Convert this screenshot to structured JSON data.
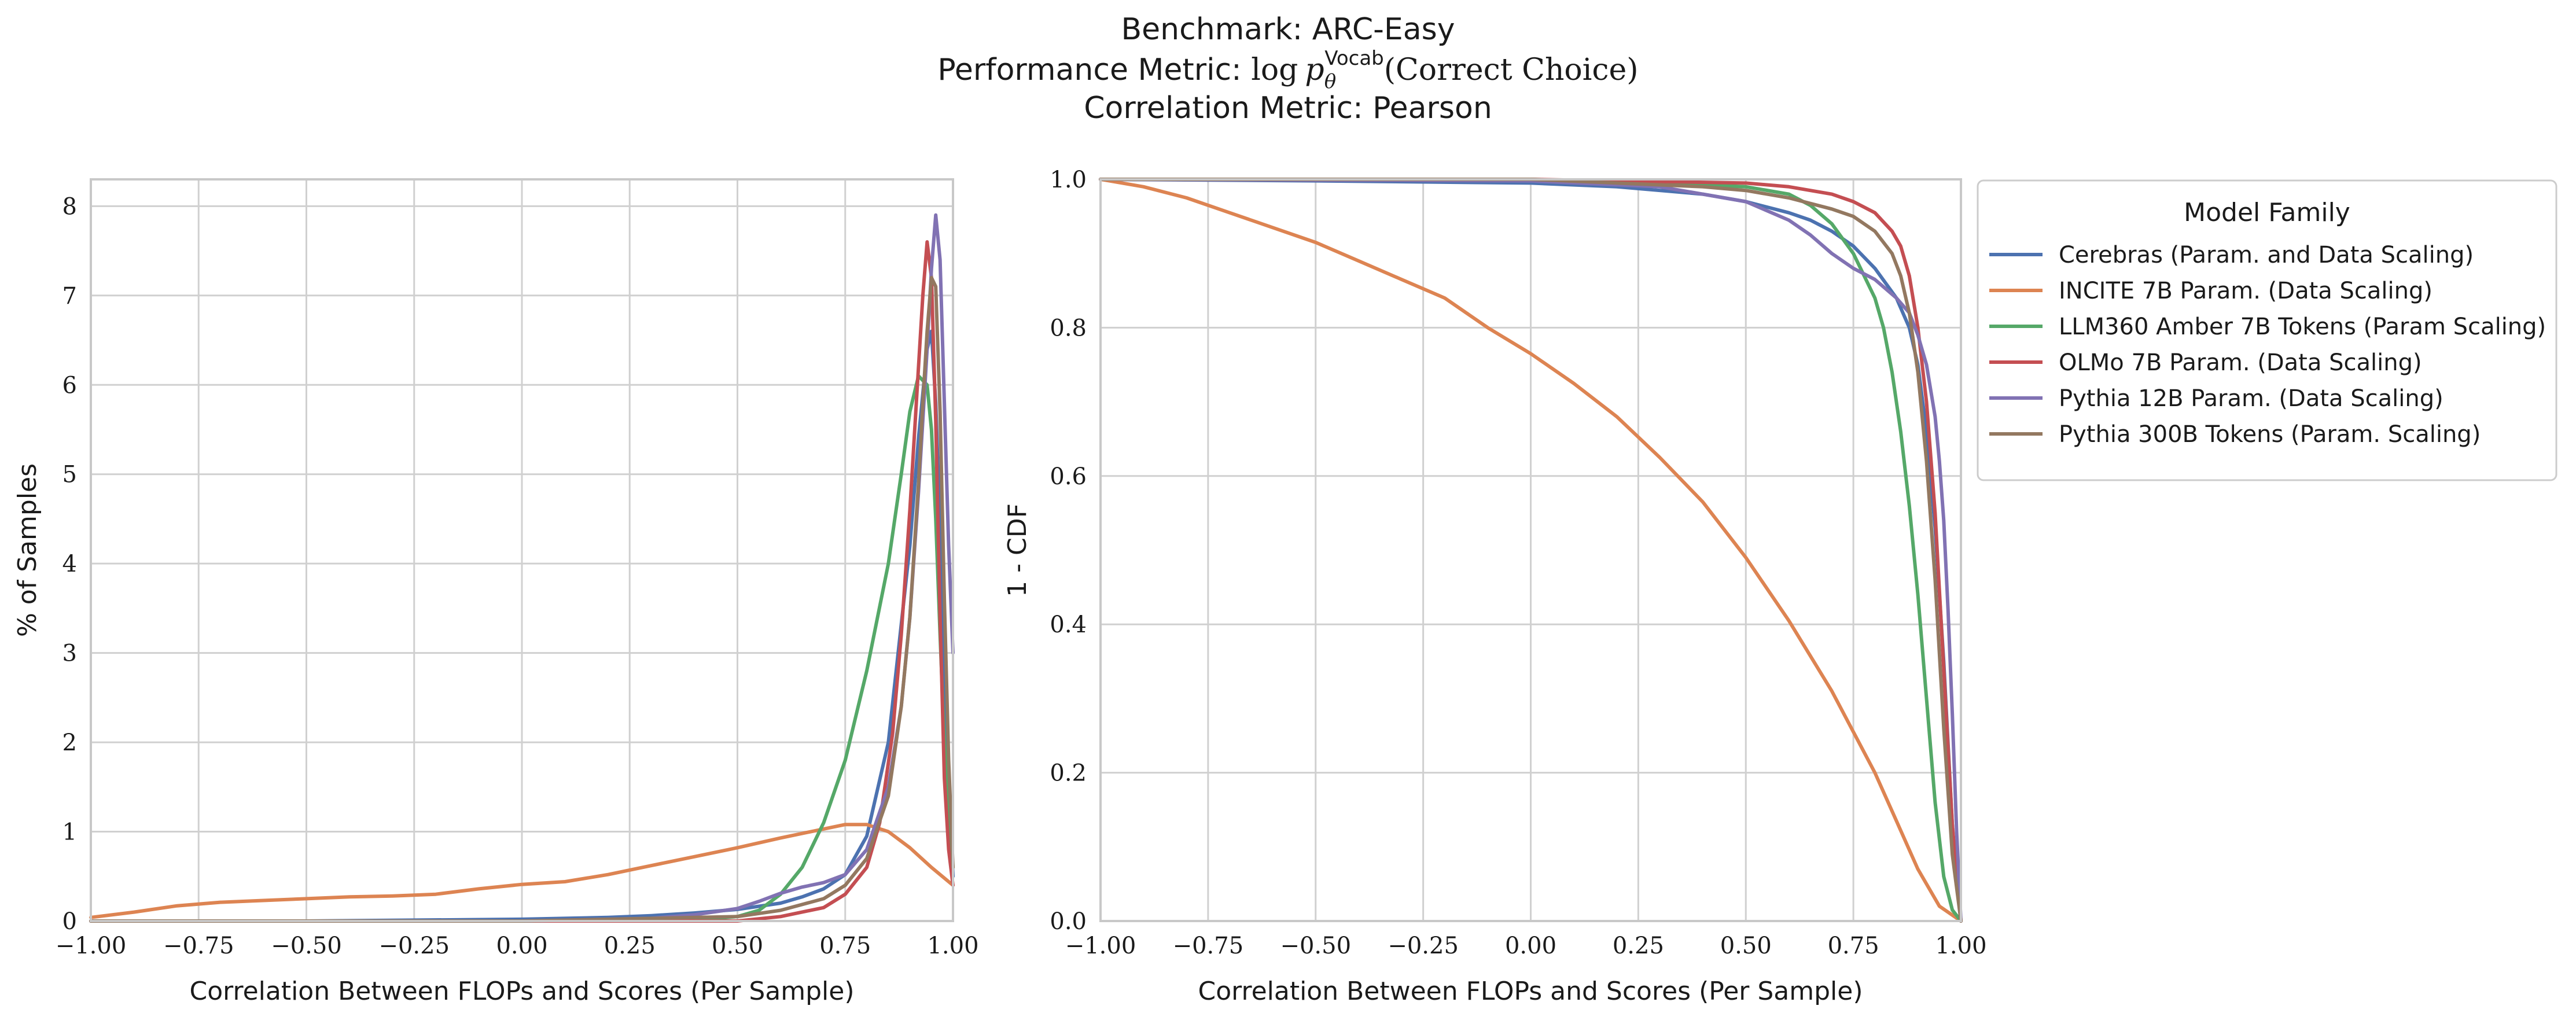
{
  "figure": {
    "title_lines": [
      "Benchmark: ARC-Easy",
      "Performance Metric: log pθVocab(Correct Choice)",
      "Correlation Metric: Pearson"
    ],
    "title_parts": {
      "metric_prefix": "Performance Metric: ",
      "metric_log": "log",
      "metric_p": "p",
      "metric_sub": "θ",
      "metric_sup": "Vocab",
      "metric_suffix": "(Correct Choice)"
    }
  },
  "colors": {
    "Cerebras": "#4c72b0",
    "INCITE": "#dd8452",
    "LLM360": "#55a868",
    "OLMo": "#c44e52",
    "Pythia12B": "#8172b3",
    "Pythia300B": "#937860",
    "grid": "#d0d0d0",
    "spine": "#c8c8c8"
  },
  "legend": {
    "title": "Model Family",
    "entries": [
      "Cerebras (Param. and Data Scaling)",
      "INCITE 7B Param. (Data Scaling)",
      "LLM360 Amber 7B Tokens (Param Scaling)",
      "OLMo 7B Param. (Data Scaling)",
      "Pythia 12B Param. (Data Scaling)",
      "Pythia 300B Tokens (Param. Scaling)"
    ],
    "placement": "outside right of right panel, top"
  },
  "chart_data": [
    {
      "type": "line",
      "subtype": "kde",
      "xlabel": "Correlation Between FLOPs and Scores (Per Sample)",
      "ylabel": "% of Samples",
      "xlim": [
        -1.0,
        1.0
      ],
      "ylim": [
        0,
        8.3
      ],
      "xticks": [
        -1.0,
        -0.75,
        -0.5,
        -0.25,
        0.0,
        0.25,
        0.5,
        0.75,
        1.0
      ],
      "xtick_labels": [
        "−1.00",
        "−0.75",
        "−0.50",
        "−0.25",
        "0.00",
        "0.25",
        "0.50",
        "0.75",
        "1.00"
      ],
      "yticks": [
        0,
        1,
        2,
        3,
        4,
        5,
        6,
        7,
        8
      ],
      "ytick_labels": [
        "0",
        "1",
        "2",
        "3",
        "4",
        "5",
        "6",
        "7",
        "8"
      ],
      "grid": true,
      "series": [
        {
          "name": "Cerebras (Param. and Data Scaling)",
          "key": "Cerebras",
          "x": [
            -1.0,
            -0.5,
            0.0,
            0.2,
            0.3,
            0.4,
            0.5,
            0.6,
            0.65,
            0.7,
            0.75,
            0.8,
            0.85,
            0.9,
            0.92,
            0.94,
            0.95,
            0.96,
            0.97,
            0.98,
            1.0
          ],
          "y": [
            0.0,
            0.0,
            0.02,
            0.04,
            0.06,
            0.09,
            0.13,
            0.2,
            0.27,
            0.36,
            0.52,
            0.95,
            2.0,
            4.2,
            5.4,
            6.4,
            6.6,
            5.8,
            4.4,
            2.6,
            0.5
          ]
        },
        {
          "name": "INCITE 7B Param. (Data Scaling)",
          "key": "INCITE",
          "x": [
            -1.0,
            -0.9,
            -0.8,
            -0.7,
            -0.6,
            -0.5,
            -0.4,
            -0.3,
            -0.2,
            -0.1,
            0.0,
            0.1,
            0.2,
            0.3,
            0.4,
            0.5,
            0.6,
            0.7,
            0.75,
            0.8,
            0.85,
            0.9,
            0.95,
            1.0
          ],
          "y": [
            0.04,
            0.1,
            0.17,
            0.21,
            0.23,
            0.25,
            0.27,
            0.28,
            0.3,
            0.36,
            0.41,
            0.44,
            0.52,
            0.62,
            0.72,
            0.82,
            0.93,
            1.03,
            1.08,
            1.08,
            1.0,
            0.82,
            0.6,
            0.4
          ]
        },
        {
          "name": "LLM360 Amber 7B Tokens (Param Scaling)",
          "key": "LLM360",
          "x": [
            -1.0,
            0.0,
            0.4,
            0.5,
            0.55,
            0.6,
            0.65,
            0.7,
            0.75,
            0.8,
            0.85,
            0.88,
            0.9,
            0.92,
            0.94,
            0.95,
            0.96,
            0.97,
            0.98,
            0.99,
            1.0
          ],
          "y": [
            0.0,
            0.0,
            0.01,
            0.05,
            0.12,
            0.3,
            0.6,
            1.1,
            1.8,
            2.8,
            4.0,
            5.0,
            5.7,
            6.1,
            6.0,
            5.5,
            4.5,
            3.2,
            2.0,
            1.2,
            0.6
          ]
        },
        {
          "name": "OLMo 7B Param. (Data Scaling)",
          "key": "OLMo",
          "x": [
            -1.0,
            0.0,
            0.5,
            0.6,
            0.7,
            0.75,
            0.8,
            0.83,
            0.86,
            0.88,
            0.9,
            0.92,
            0.93,
            0.94,
            0.95,
            0.96,
            0.97,
            0.98,
            0.99,
            1.0
          ],
          "y": [
            0.0,
            0.0,
            0.0,
            0.05,
            0.15,
            0.3,
            0.6,
            1.1,
            2.1,
            3.2,
            4.6,
            6.2,
            7.0,
            7.6,
            7.2,
            5.6,
            3.4,
            1.6,
            0.8,
            0.4
          ]
        },
        {
          "name": "Pythia 12B Param. (Data Scaling)",
          "key": "Pythia12B",
          "x": [
            -1.0,
            0.0,
            0.3,
            0.4,
            0.5,
            0.55,
            0.6,
            0.65,
            0.7,
            0.75,
            0.8,
            0.85,
            0.88,
            0.9,
            0.92,
            0.94,
            0.95,
            0.96,
            0.97,
            0.98,
            0.99,
            1.0
          ],
          "y": [
            0.0,
            0.0,
            0.03,
            0.07,
            0.14,
            0.22,
            0.31,
            0.38,
            0.43,
            0.52,
            0.8,
            1.5,
            2.4,
            3.4,
            4.8,
            6.4,
            7.3,
            7.9,
            7.4,
            5.8,
            4.2,
            3.0
          ]
        },
        {
          "name": "Pythia 300B Tokens (Param. Scaling)",
          "key": "Pythia300B",
          "x": [
            -1.0,
            0.0,
            0.5,
            0.6,
            0.7,
            0.75,
            0.8,
            0.85,
            0.88,
            0.9,
            0.92,
            0.93,
            0.94,
            0.95,
            0.96,
            0.97,
            0.98,
            0.99,
            1.0
          ],
          "y": [
            0.0,
            0.0,
            0.05,
            0.12,
            0.25,
            0.4,
            0.7,
            1.4,
            2.4,
            3.4,
            4.9,
            5.8,
            6.6,
            7.2,
            7.1,
            5.7,
            3.6,
            1.8,
            0.6
          ]
        }
      ]
    },
    {
      "type": "line",
      "subtype": "survival (1 - CDF)",
      "xlabel": "Correlation Between FLOPs and Scores (Per Sample)",
      "ylabel": "1 - CDF",
      "xlim": [
        -1.0,
        1.0
      ],
      "ylim": [
        0.0,
        1.0
      ],
      "xticks": [
        -1.0,
        -0.75,
        -0.5,
        -0.25,
        0.0,
        0.25,
        0.5,
        0.75,
        1.0
      ],
      "xtick_labels": [
        "−1.00",
        "−0.75",
        "−0.50",
        "−0.25",
        "0.00",
        "0.25",
        "0.50",
        "0.75",
        "1.00"
      ],
      "yticks": [
        0.0,
        0.2,
        0.4,
        0.6,
        0.8,
        1.0
      ],
      "ytick_labels": [
        "0.0",
        "0.2",
        "0.4",
        "0.6",
        "0.8",
        "1.0"
      ],
      "grid": true,
      "series": [
        {
          "name": "Cerebras (Param. and Data Scaling)",
          "key": "Cerebras",
          "x": [
            -1.0,
            -0.5,
            0.0,
            0.2,
            0.4,
            0.5,
            0.6,
            0.65,
            0.7,
            0.75,
            0.8,
            0.85,
            0.88,
            0.9,
            0.92,
            0.94,
            0.96,
            0.97,
            0.98,
            0.99,
            1.0
          ],
          "y": [
            1.0,
            0.998,
            0.995,
            0.99,
            0.98,
            0.97,
            0.955,
            0.945,
            0.93,
            0.91,
            0.88,
            0.84,
            0.8,
            0.75,
            0.66,
            0.53,
            0.35,
            0.24,
            0.13,
            0.05,
            0.0
          ]
        },
        {
          "name": "INCITE 7B Param. (Data Scaling)",
          "key": "INCITE",
          "x": [
            -1.0,
            -0.9,
            -0.8,
            -0.7,
            -0.6,
            -0.5,
            -0.4,
            -0.3,
            -0.2,
            -0.1,
            0.0,
            0.1,
            0.2,
            0.3,
            0.4,
            0.5,
            0.6,
            0.7,
            0.75,
            0.8,
            0.85,
            0.9,
            0.95,
            1.0
          ],
          "y": [
            1.0,
            0.99,
            0.975,
            0.955,
            0.935,
            0.915,
            0.89,
            0.865,
            0.84,
            0.8,
            0.765,
            0.725,
            0.68,
            0.625,
            0.565,
            0.49,
            0.405,
            0.31,
            0.255,
            0.2,
            0.135,
            0.07,
            0.02,
            0.0
          ]
        },
        {
          "name": "LLM360 Amber 7B Tokens (Param Scaling)",
          "key": "LLM360",
          "x": [
            -1.0,
            0.0,
            0.3,
            0.5,
            0.6,
            0.65,
            0.7,
            0.75,
            0.8,
            0.82,
            0.84,
            0.86,
            0.88,
            0.9,
            0.92,
            0.94,
            0.96,
            0.98,
            1.0
          ],
          "y": [
            1.0,
            1.0,
            0.995,
            0.99,
            0.98,
            0.965,
            0.94,
            0.9,
            0.84,
            0.8,
            0.74,
            0.66,
            0.56,
            0.44,
            0.3,
            0.16,
            0.06,
            0.015,
            0.0
          ]
        },
        {
          "name": "OLMo 7B Param. (Data Scaling)",
          "key": "OLMo",
          "x": [
            -1.0,
            0.0,
            0.5,
            0.6,
            0.7,
            0.75,
            0.8,
            0.84,
            0.86,
            0.88,
            0.9,
            0.92,
            0.94,
            0.96,
            0.98,
            1.0
          ],
          "y": [
            1.0,
            1.0,
            0.995,
            0.99,
            0.98,
            0.97,
            0.955,
            0.93,
            0.91,
            0.87,
            0.8,
            0.7,
            0.55,
            0.34,
            0.13,
            0.0
          ]
        },
        {
          "name": "Pythia 12B Param. (Data Scaling)",
          "key": "Pythia12B",
          "x": [
            -1.0,
            0.0,
            0.3,
            0.5,
            0.6,
            0.65,
            0.7,
            0.75,
            0.8,
            0.85,
            0.88,
            0.9,
            0.92,
            0.94,
            0.95,
            0.96,
            0.97,
            0.98,
            0.99,
            1.0
          ],
          "y": [
            1.0,
            0.998,
            0.99,
            0.97,
            0.945,
            0.925,
            0.9,
            0.88,
            0.865,
            0.84,
            0.82,
            0.79,
            0.75,
            0.68,
            0.62,
            0.54,
            0.42,
            0.28,
            0.12,
            0.0
          ]
        },
        {
          "name": "Pythia 300B Tokens (Param. Scaling)",
          "key": "Pythia300B",
          "x": [
            -1.0,
            0.0,
            0.4,
            0.5,
            0.6,
            0.7,
            0.75,
            0.8,
            0.84,
            0.86,
            0.88,
            0.9,
            0.92,
            0.94,
            0.96,
            0.98,
            1.0
          ],
          "y": [
            1.0,
            1.0,
            0.99,
            0.985,
            0.975,
            0.96,
            0.95,
            0.93,
            0.9,
            0.87,
            0.82,
            0.74,
            0.62,
            0.46,
            0.26,
            0.09,
            0.0
          ]
        }
      ]
    }
  ]
}
